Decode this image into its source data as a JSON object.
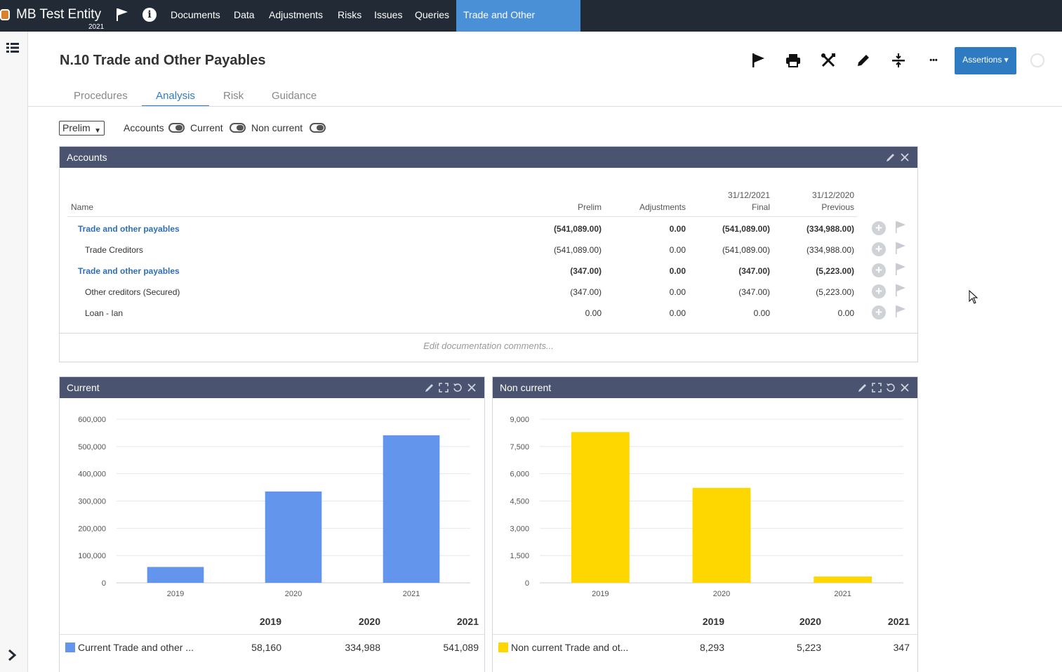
{
  "topbar": {
    "entity_name": "MB Test Entity",
    "entity_year": "2021",
    "nav": [
      {
        "label": "Documents"
      },
      {
        "label": "Data"
      },
      {
        "label": "Adjustments"
      },
      {
        "label": "Risks"
      },
      {
        "label": "Issues"
      },
      {
        "label": "Queries"
      },
      {
        "label": "Trade and Other Payables",
        "active": true
      }
    ],
    "info_glyph": "i"
  },
  "header": {
    "title": "N.10 Trade and Other Payables",
    "assertions_label": "Assertions ▾",
    "more_glyph": "•••"
  },
  "tabs": [
    {
      "label": "Procedures"
    },
    {
      "label": "Analysis",
      "active": true
    },
    {
      "label": "Risk"
    },
    {
      "label": "Guidance"
    }
  ],
  "filters": {
    "select_value": "Prelim",
    "toggles": [
      {
        "label": "Accounts",
        "on": true
      },
      {
        "label": "Current",
        "on": true
      },
      {
        "label": "Non current",
        "on": true
      }
    ]
  },
  "accounts": {
    "title": "Accounts",
    "columns": {
      "name": "Name",
      "prelim": "Prelim",
      "adjustments": "Adjustments",
      "final_date": "31/12/2021",
      "final": "Final",
      "previous_date": "31/12/2020",
      "previous": "Previous"
    },
    "rows": [
      {
        "name": "Trade and other payables",
        "group": true,
        "prelim": "(541,089.00)",
        "adjustments": "0.00",
        "final": "(541,089.00)",
        "previous": "(334,988.00)"
      },
      {
        "name": "Trade Creditors",
        "group": false,
        "prelim": "(541,089.00)",
        "adjustments": "0.00",
        "final": "(541,089.00)",
        "previous": "(334,988.00)"
      },
      {
        "name": "Trade and other payables",
        "group": true,
        "prelim": "(347.00)",
        "adjustments": "0.00",
        "final": "(347.00)",
        "previous": "(5,223.00)"
      },
      {
        "name": "Other creditors (Secured)",
        "group": false,
        "prelim": "(347.00)",
        "adjustments": "0.00",
        "final": "(347.00)",
        "previous": "(5,223.00)"
      },
      {
        "name": "Loan - Ian",
        "group": false,
        "prelim": "0.00",
        "adjustments": "0.00",
        "final": "0.00",
        "previous": "0.00"
      }
    ],
    "comments_placeholder": "Edit documentation comments..."
  },
  "current_panel": {
    "title": "Current",
    "legend_label": "Current Trade and other ...",
    "years": [
      "2019",
      "2020",
      "2021"
    ],
    "values_text": [
      "58,160",
      "334,988",
      "541,089"
    ]
  },
  "noncurrent_panel": {
    "title": "Non current",
    "legend_label": "Non current Trade and ot...",
    "years": [
      "2019",
      "2020",
      "2021"
    ],
    "values_text": [
      "8,293",
      "5,223",
      "347"
    ]
  },
  "colors": {
    "topbar": "#222a35",
    "active_nav": "#4a90d6",
    "panel_header": "#4a5470",
    "current_bar": "#6495ed",
    "noncurrent_bar": "#ffd700",
    "link_blue": "#2f6fb4"
  },
  "chart_data": [
    {
      "type": "bar",
      "title": "Current",
      "categories": [
        "2019",
        "2020",
        "2021"
      ],
      "series": [
        {
          "name": "Current Trade and other ...",
          "values": [
            58160,
            334988,
            541089
          ],
          "color": "#6495ed"
        }
      ],
      "yticks": [
        "0",
        "100,000",
        "200,000",
        "300,000",
        "400,000",
        "500,000",
        "600,000"
      ],
      "ylim": [
        0,
        600000
      ],
      "grid": true
    },
    {
      "type": "bar",
      "title": "Non current",
      "categories": [
        "2019",
        "2020",
        "2021"
      ],
      "series": [
        {
          "name": "Non current Trade and ot...",
          "values": [
            8293,
            5223,
            347
          ],
          "color": "#ffd700"
        }
      ],
      "yticks": [
        "0",
        "1,500",
        "3,000",
        "4,500",
        "6,000",
        "7,500",
        "9,000"
      ],
      "ylim": [
        0,
        9000
      ],
      "grid": true
    }
  ]
}
